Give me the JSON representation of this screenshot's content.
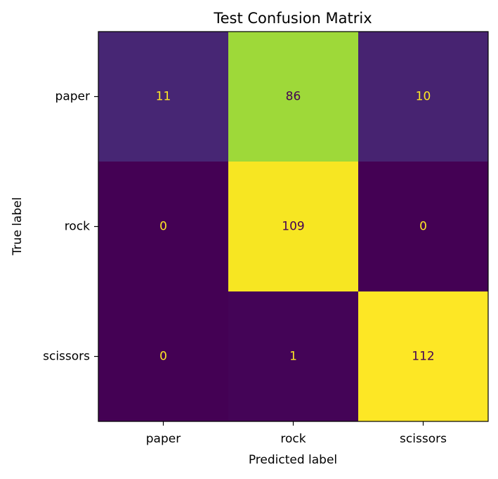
{
  "chart_data": {
    "type": "heatmap",
    "title": "Test Confusion Matrix",
    "xlabel": "Predicted label",
    "ylabel": "True label",
    "x_categories": [
      "paper",
      "rock",
      "scissors"
    ],
    "y_categories": [
      "paper",
      "rock",
      "scissors"
    ],
    "values": [
      [
        11,
        86,
        10
      ],
      [
        0,
        109,
        0
      ],
      [
        0,
        1,
        112
      ]
    ],
    "colormap": "viridis",
    "value_range": [
      0,
      112
    ],
    "grid": false,
    "colorbar": false
  }
}
